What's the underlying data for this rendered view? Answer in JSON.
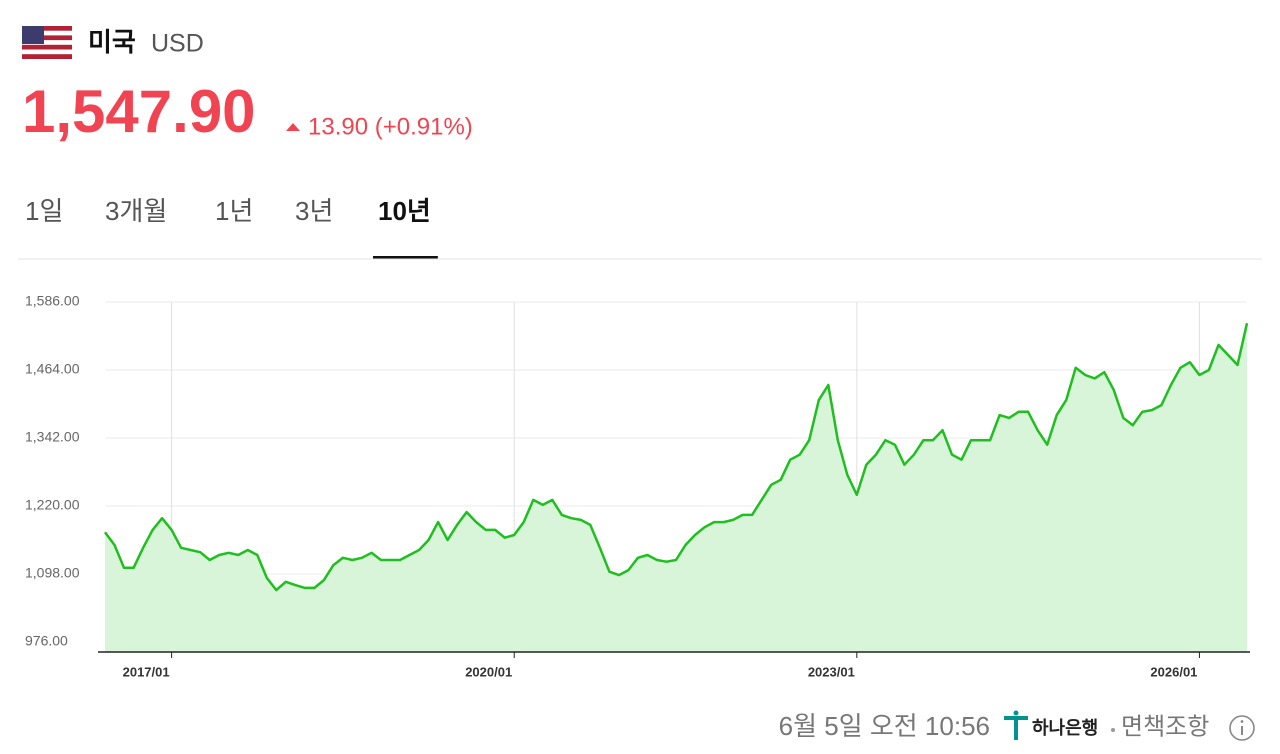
{
  "header": {
    "country": "미국",
    "currency": "USD"
  },
  "quote": {
    "price": "1,547.90",
    "change": "13.90 (+0.91%)"
  },
  "tabs": [
    "1일",
    "3개월",
    "1년",
    "3년",
    "10년"
  ],
  "selected_tab": 4,
  "chart_data": {
    "type": "area",
    "color": "#1fbf1f",
    "area_color": "#d9f5d9",
    "grid": true,
    "x": [
      "2016/06",
      "2016/07",
      "2016/08",
      "2016/09",
      "2016/10",
      "2016/11",
      "2016/12",
      "2017/01",
      "2017/02",
      "2017/03",
      "2017/04",
      "2017/05",
      "2017/06",
      "2017/07",
      "2017/08",
      "2017/09",
      "2017/10",
      "2017/11",
      "2017/12",
      "2018/01",
      "2018/02",
      "2018/03",
      "2018/04",
      "2018/05",
      "2018/06",
      "2018/07",
      "2018/08",
      "2018/09",
      "2018/10",
      "2018/11",
      "2018/12",
      "2019/01",
      "2019/02",
      "2019/03",
      "2019/04",
      "2019/05",
      "2019/06",
      "2019/07",
      "2019/08",
      "2019/09",
      "2019/10",
      "2019/11",
      "2019/12",
      "2020/01",
      "2020/02",
      "2020/03",
      "2020/04",
      "2020/05",
      "2020/06",
      "2020/07",
      "2020/08",
      "2020/09",
      "2020/10",
      "2020/11",
      "2020/12",
      "2021/01",
      "2021/02",
      "2021/03",
      "2021/04",
      "2021/05",
      "2021/06",
      "2021/07",
      "2021/08",
      "2021/09",
      "2021/10",
      "2021/11",
      "2021/12",
      "2022/01",
      "2022/02",
      "2022/03",
      "2022/04",
      "2022/05",
      "2022/06",
      "2022/07",
      "2022/08",
      "2022/09",
      "2022/10",
      "2022/11",
      "2022/12",
      "2023/01",
      "2023/02",
      "2023/03",
      "2023/04",
      "2023/05",
      "2023/06",
      "2023/07",
      "2023/08",
      "2023/09",
      "2023/10",
      "2023/11",
      "2023/12",
      "2024/01",
      "2024/02",
      "2024/03",
      "2024/04",
      "2024/05",
      "2024/06",
      "2024/07",
      "2024/08",
      "2024/09",
      "2024/10",
      "2024/11",
      "2024/12",
      "2025/01",
      "2025/02",
      "2025/03",
      "2025/04",
      "2025/05",
      "2025/06",
      "2025/07",
      "2025/08",
      "2025/09",
      "2025/10",
      "2025/11",
      "2025/12",
      "2026/01",
      "2026/02",
      "2026/03",
      "2026/04",
      "2026/05",
      "2026/06"
    ],
    "values": [
      1173,
      1150,
      1109,
      1109,
      1145,
      1177,
      1198,
      1177,
      1145,
      1141,
      1137,
      1123,
      1132,
      1136,
      1132,
      1141,
      1132,
      1091,
      1069,
      1084,
      1078,
      1073,
      1073,
      1087,
      1114,
      1127,
      1123,
      1127,
      1136,
      1123,
      1123,
      1123,
      1132,
      1141,
      1159,
      1191,
      1159,
      1186,
      1209,
      1191,
      1177,
      1177,
      1163,
      1168,
      1191,
      1231,
      1222,
      1231,
      1204,
      1198,
      1195,
      1186,
      1145,
      1102,
      1096,
      1105,
      1127,
      1132,
      1123,
      1120,
      1123,
      1150,
      1168,
      1182,
      1191,
      1191,
      1195,
      1204,
      1204,
      1231,
      1258,
      1267,
      1303,
      1312,
      1338,
      1410,
      1437,
      1338,
      1276,
      1240,
      1294,
      1312,
      1338,
      1330,
      1294,
      1312,
      1338,
      1338,
      1356,
      1312,
      1303,
      1338,
      1338,
      1338,
      1383,
      1378,
      1389,
      1389,
      1356,
      1330,
      1383,
      1410,
      1468,
      1455,
      1449,
      1460,
      1428,
      1378,
      1365,
      1389,
      1392,
      1401,
      1437,
      1468,
      1478,
      1455,
      1464,
      1509,
      1491,
      1473,
      1548
    ],
    "xlim": [
      "2016/06",
      "2026/06"
    ],
    "xticks": [
      "2017/01",
      "2020/01",
      "2023/01",
      "2026/01"
    ],
    "ylim": [
      958,
      1586
    ],
    "yticks": [
      {
        "value": 976,
        "label": "976.00"
      },
      {
        "value": 1098,
        "label": "1,098.00"
      },
      {
        "value": 1220,
        "label": "1,220.00"
      },
      {
        "value": 1342,
        "label": "1,342.00"
      },
      {
        "value": 1464,
        "label": "1,464.00"
      },
      {
        "value": 1586,
        "label": "1,586.00"
      }
    ]
  },
  "footer": {
    "time": "6월 5일 오전 10:56",
    "bank": "하나은행",
    "disclaimer": "면책조항"
  }
}
